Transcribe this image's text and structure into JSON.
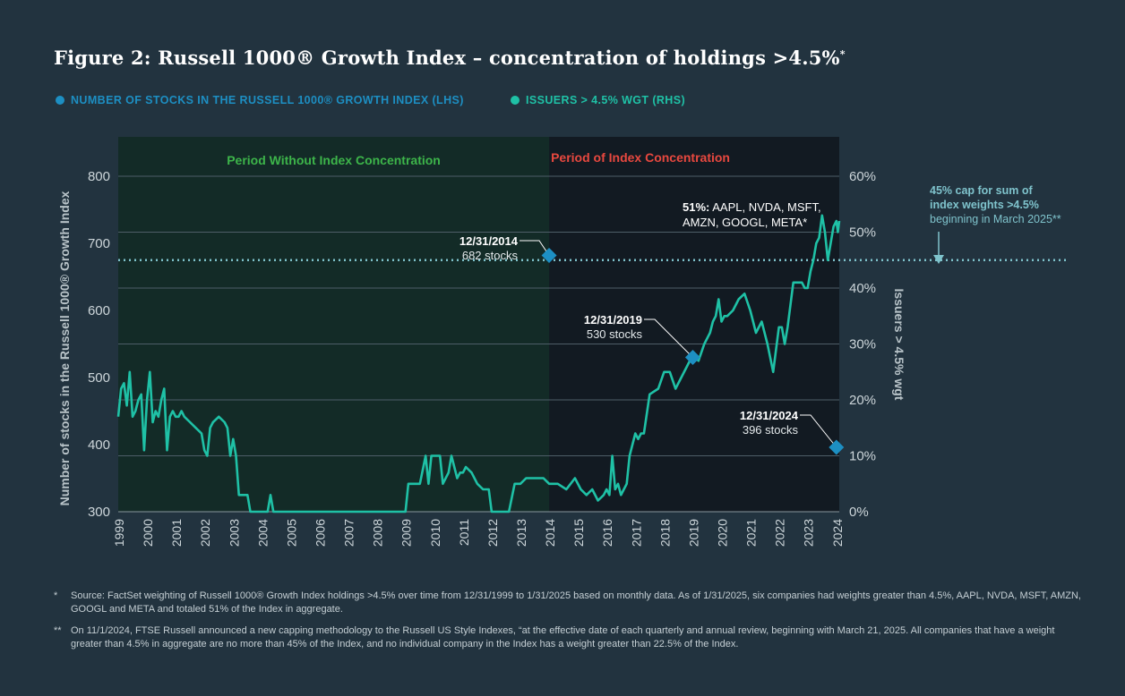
{
  "title": {
    "main": "Figure 2: Russell 1000® Growth Index – concentration of holdings >4.5%",
    "sup": "*"
  },
  "legend": [
    {
      "label": "NUMBER OF STOCKS IN THE RUSSELL 1000® GROWTH INDEX (LHS)",
      "color": "#1d8fc3"
    },
    {
      "label": "ISSUERS > 4.5% WGT (RHS)",
      "color": "#1fc1a6"
    }
  ],
  "colors": {
    "background": "#22333f",
    "period1_bg": "#132b27",
    "period2_bg": "#121a22",
    "period1_label": "#3db54a",
    "period2_label": "#e8483f",
    "line": "#1fc1a6",
    "marker": "#1d8fc3",
    "cap_line": "#7fc3cc"
  },
  "chart_data": {
    "type": "line",
    "xlabel": "",
    "ylabel": "Number of stocks in the Russell 1000® Growth Index",
    "y2label": "Issuers > 4.5% wgt",
    "xlim": [
      1999,
      2024.1
    ],
    "x_ticks": [
      "1999",
      "2000",
      "2001",
      "2002",
      "2003",
      "2004",
      "2005",
      "2006",
      "2007",
      "2008",
      "2009",
      "2010",
      "2011",
      "2012",
      "2013",
      "2014",
      "2015",
      "2016",
      "2017",
      "2018",
      "2019",
      "2020",
      "2021",
      "2022",
      "2023",
      "2024"
    ],
    "ylim": [
      300,
      800
    ],
    "y_ticks": [
      "300",
      "400",
      "500",
      "600",
      "700",
      "800"
    ],
    "y2lim": [
      0,
      60
    ],
    "y2_ticks": [
      "0%",
      "10%",
      "20%",
      "30%",
      "40%",
      "50%",
      "60%"
    ],
    "periods": [
      {
        "label": "Period Without Index Concentration",
        "start": 1999,
        "end": 2014
      },
      {
        "label": "Period of Index Concentration",
        "start": 2014,
        "end": 2024.1
      }
    ],
    "series": [
      {
        "name": "Issuers > 4.5% wgt (RHS)",
        "axis": "right",
        "x": [
          1999.0,
          1999.1,
          1999.2,
          1999.3,
          1999.4,
          1999.5,
          1999.6,
          1999.7,
          1999.8,
          1999.9,
          2000.0,
          2000.1,
          2000.2,
          2000.3,
          2000.4,
          2000.5,
          2000.6,
          2000.7,
          2000.8,
          2000.9,
          2001.0,
          2001.1,
          2001.2,
          2001.3,
          2001.5,
          2001.7,
          2001.9,
          2002.0,
          2002.1,
          2002.2,
          2002.3,
          2002.5,
          2002.7,
          2002.8,
          2002.9,
          2003.0,
          2003.1,
          2003.2,
          2003.3,
          2003.5,
          2003.6,
          2003.7,
          2003.8,
          2004.0,
          2004.2,
          2004.3,
          2004.4,
          2004.5,
          2005,
          2006,
          2007,
          2008,
          2009.0,
          2009.1,
          2009.3,
          2009.5,
          2009.7,
          2009.8,
          2009.9,
          2010.0,
          2010.2,
          2010.3,
          2010.4,
          2010.5,
          2010.6,
          2010.8,
          2010.9,
          2011.0,
          2011.1,
          2011.3,
          2011.5,
          2011.7,
          2011.9,
          2012.0,
          2012.2,
          2012.3,
          2012.5,
          2012.6,
          2012.8,
          2012.9,
          2013.0,
          2013.2,
          2013.4,
          2013.5,
          2013.7,
          2013.8,
          2014.0,
          2014.3,
          2014.6,
          2014.9,
          2015.1,
          2015.3,
          2015.5,
          2015.7,
          2015.9,
          2016.0,
          2016.1,
          2016.2,
          2016.3,
          2016.4,
          2016.5,
          2016.6,
          2016.7,
          2016.8,
          2016.9,
          2017.0,
          2017.1,
          2017.2,
          2017.3,
          2017.5,
          2017.8,
          2018.0,
          2018.2,
          2018.4,
          2018.6,
          2018.8,
          2019.0,
          2019.2,
          2019.4,
          2019.6,
          2019.7,
          2019.8,
          2019.9,
          2020.0,
          2020.1,
          2020.2,
          2020.4,
          2020.6,
          2020.8,
          2021.0,
          2021.2,
          2021.4,
          2021.6,
          2021.8,
          2022.0,
          2022.1,
          2022.2,
          2022.3,
          2022.4,
          2022.5,
          2022.6,
          2022.7,
          2022.8,
          2022.9,
          2023.0,
          2023.1,
          2023.2,
          2023.3,
          2023.4,
          2023.5,
          2023.6,
          2023.7,
          2023.8,
          2023.9,
          2024.0,
          2024.05,
          2024.1
        ],
        "y": [
          17,
          22,
          23,
          19,
          25,
          17,
          18,
          20,
          21,
          11,
          20,
          25,
          16,
          18,
          17,
          20,
          22,
          11,
          17,
          18,
          17,
          17,
          18,
          17,
          16,
          15,
          14,
          11,
          10,
          15,
          16,
          17,
          16,
          15,
          10,
          13,
          10,
          3,
          3,
          3,
          0,
          0,
          0,
          0,
          0,
          3,
          0,
          0,
          0,
          0,
          0,
          0,
          0,
          5,
          5,
          5,
          10,
          5,
          10,
          10,
          10,
          5,
          6,
          7,
          10,
          6,
          7,
          7,
          8,
          7,
          5,
          4,
          4,
          0,
          0,
          0,
          0,
          0,
          5,
          5,
          5,
          6,
          6,
          6,
          6,
          6,
          5,
          5,
          4,
          6,
          4,
          3,
          4,
          2,
          3,
          4,
          3,
          10,
          4,
          5,
          3,
          4,
          5,
          10,
          12,
          14,
          13,
          14,
          14,
          21,
          22,
          25,
          25,
          22,
          24,
          26,
          28,
          27,
          30,
          32,
          34,
          35,
          38,
          34,
          35,
          35,
          36,
          38,
          39,
          36,
          32,
          34,
          30,
          25,
          33,
          33,
          30,
          33,
          37,
          41,
          41,
          41,
          41,
          40,
          40,
          43,
          45,
          48,
          49,
          53,
          50,
          45,
          48,
          51,
          52,
          50,
          52
        ],
        "color": "#1fc1a6"
      }
    ],
    "cap_line": {
      "value": 45,
      "axis": "right"
    },
    "markers": [
      {
        "x": 2014.0,
        "y": 682,
        "date": "12/31/2014",
        "label": "682 stocks"
      },
      {
        "x": 2019.0,
        "y": 530,
        "date": "12/31/2019",
        "label": "530 stocks"
      },
      {
        "x": 2024.0,
        "y": 396,
        "date": "12/31/2024",
        "label": "396 stocks"
      }
    ],
    "annotations": {
      "peak_bold": "51%:",
      "peak_line1": " AAPL, NVDA, MSFT,",
      "peak_line2": "AMZN, GOOGL, META*",
      "cap_line1": "45% cap for sum of",
      "cap_line2": "index weights >4.5%",
      "cap_line3": "beginning in March 2025**"
    }
  },
  "footnotes": [
    {
      "mark": "*",
      "text": "Source: FactSet weighting of Russell 1000® Growth Index holdings >4.5% over time from 12/31/1999 to 1/31/2025 based on monthly data. As of 1/31/2025, six companies had weights greater than 4.5%, AAPL, NVDA, MSFT, AMZN, GOOGL and META and totaled 51% of the Index in aggregate."
    },
    {
      "mark": "**",
      "text": "On 11/1/2024, FTSE Russell announced a new capping methodology to the Russell US Style Indexes, “at the effective date of each quarterly and annual review, beginning with March 21, 2025. All companies that have a weight greater than 4.5% in aggregate are no more than 45% of the Index, and no individual company in the Index has a weight greater than 22.5% of the Index."
    }
  ]
}
